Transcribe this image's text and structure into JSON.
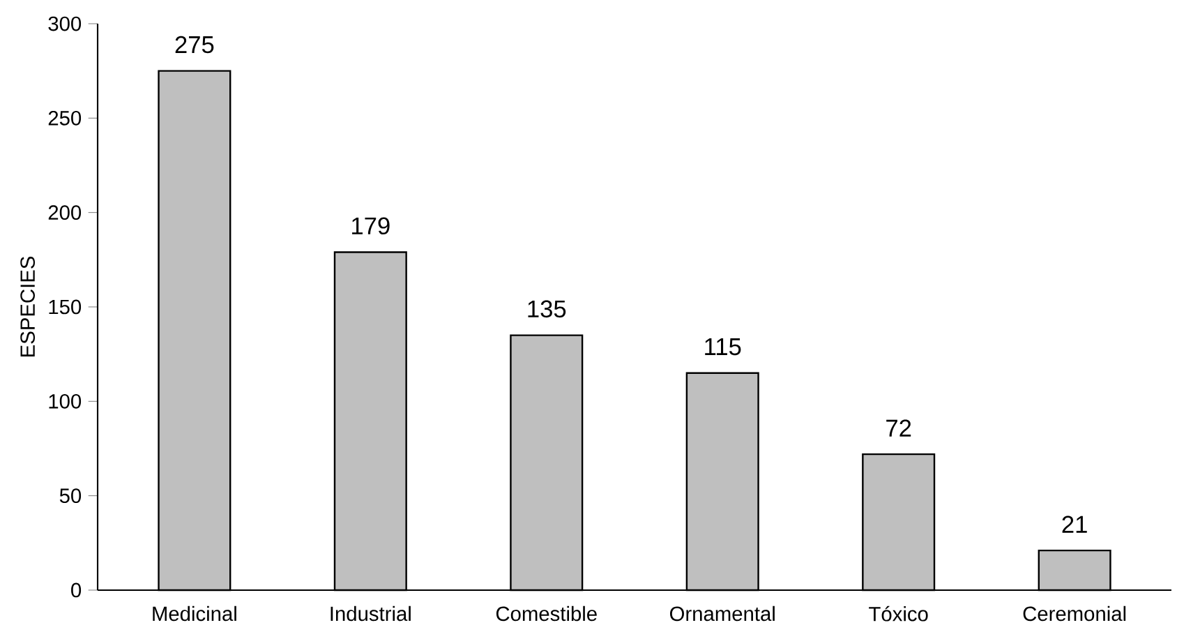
{
  "chart_data": {
    "type": "bar",
    "ylabel": "ESPECIES",
    "categories": [
      "Medicinal",
      "Industrial",
      "Comestible",
      "Ornamental",
      "Tóxico",
      "Ceremonial"
    ],
    "values": [
      275,
      179,
      135,
      115,
      72,
      21
    ],
    "color": "#bfbfbf",
    "data_labels": true,
    "grid": false,
    "ylim": [
      0,
      300
    ],
    "yticks": [
      0,
      50,
      100,
      150,
      200,
      250,
      300
    ]
  }
}
